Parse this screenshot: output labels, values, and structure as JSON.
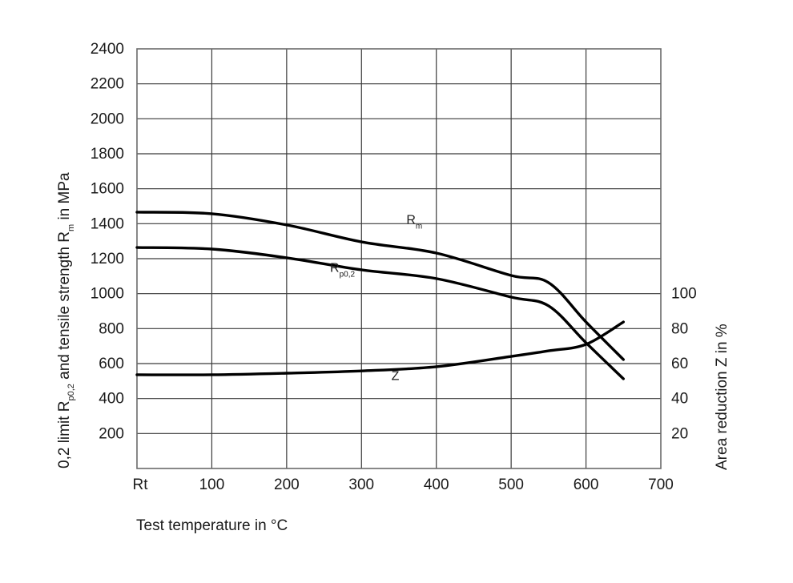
{
  "chart_data": {
    "type": "line",
    "title": "",
    "xlabel": "Test temperature in °C",
    "ylabel": "0,2 limit Rp0,2 and tensile strength Rm in MPa",
    "ylabel_parts": {
      "pre": "0,2 limit R",
      "sub1": "p0,2",
      "mid": " and tensile strength R",
      "sub2": "m",
      "post": " in MPa"
    },
    "y2label": "Area reduction Z in %",
    "xlim": [
      0,
      700
    ],
    "ylim": [
      0,
      2400
    ],
    "y2lim": [
      0,
      240
    ],
    "grid": true,
    "x_ticks": [
      {
        "value": 0,
        "label": "Rt"
      },
      {
        "value": 100,
        "label": "100"
      },
      {
        "value": 200,
        "label": "200"
      },
      {
        "value": 300,
        "label": "300"
      },
      {
        "value": 400,
        "label": "400"
      },
      {
        "value": 500,
        "label": "500"
      },
      {
        "value": 600,
        "label": "600"
      },
      {
        "value": 700,
        "label": "700"
      }
    ],
    "y_ticks": [
      "200",
      "400",
      "600",
      "800",
      "1000",
      "1200",
      "1400",
      "1600",
      "1800",
      "2000",
      "2200",
      "2400"
    ],
    "y_tick_values": [
      200,
      400,
      600,
      800,
      1000,
      1200,
      1400,
      1600,
      1800,
      2000,
      2200,
      2400
    ],
    "y2_ticks": [
      {
        "value": 20,
        "label": "20"
      },
      {
        "value": 40,
        "label": "40"
      },
      {
        "value": 60,
        "label": "60"
      },
      {
        "value": 80,
        "label": "80"
      },
      {
        "value": 100,
        "label": "100"
      }
    ],
    "x": [
      0,
      100,
      200,
      300,
      400,
      500,
      550,
      600,
      650
    ],
    "series": [
      {
        "name": "Rm",
        "label_main": "R",
        "label_sub": "m",
        "axis": "left",
        "unit": "MPa",
        "values": [
          1466,
          1457,
          1393,
          1296,
          1232,
          1104,
          1063,
          838,
          623
        ],
        "label_pos": [
          360,
          1400
        ]
      },
      {
        "name": "Rp0,2",
        "label_main": "R",
        "label_sub": "p0,2",
        "axis": "left",
        "unit": "MPa",
        "values": [
          1264,
          1255,
          1205,
          1136,
          1086,
          980,
          930,
          719,
          513
        ],
        "label_pos": [
          258,
          1125
        ]
      },
      {
        "name": "Z",
        "label_main": "Z",
        "label_sub": "",
        "axis": "right",
        "unit": "%",
        "values": [
          53.6,
          53.6,
          54.5,
          55.8,
          58.2,
          64.1,
          67.3,
          71.0,
          83.8
        ],
        "label_pos": [
          340,
          505
        ]
      }
    ]
  }
}
